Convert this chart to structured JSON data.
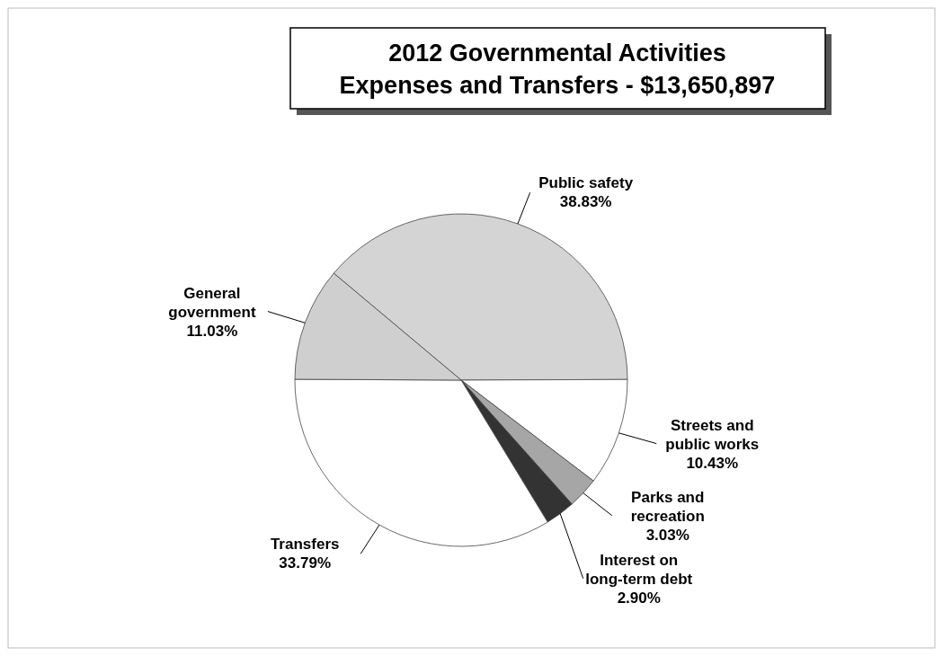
{
  "chart_data": {
    "type": "pie",
    "title": "2012 Governmental Activities\nExpenses and Transfers - $13,650,897",
    "categories": [
      "Public safety",
      "Streets and public works",
      "Parks and recreation",
      "Interest on long-term debt",
      "Transfers",
      "General government"
    ],
    "values": [
      38.83,
      10.43,
      3.03,
      2.9,
      33.79,
      11.03
    ],
    "value_labels": [
      "38.83%",
      "10.43%",
      "3.03%",
      "2.90%",
      "33.79%",
      "11.03%"
    ],
    "colors": [
      "#d4d4d4",
      "#ffffff",
      "#a6a6a6",
      "#333333",
      "#ffffff",
      "#cfcfcf"
    ]
  }
}
